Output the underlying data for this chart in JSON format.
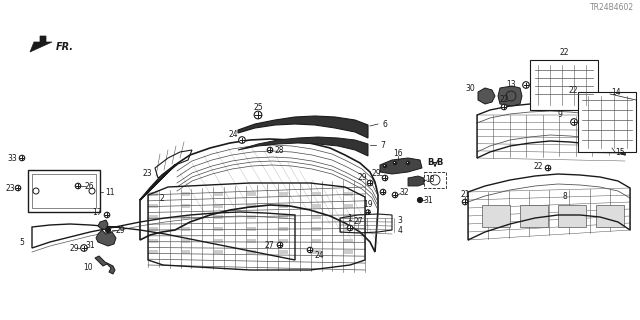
{
  "diagram_id": "TR24B4602",
  "background_color": "#ffffff",
  "line_color": "#1a1a1a",
  "gray_color": "#555555",
  "light_gray": "#aaaaaa",
  "fig_w": 6.4,
  "fig_h": 3.2,
  "dpi": 100
}
